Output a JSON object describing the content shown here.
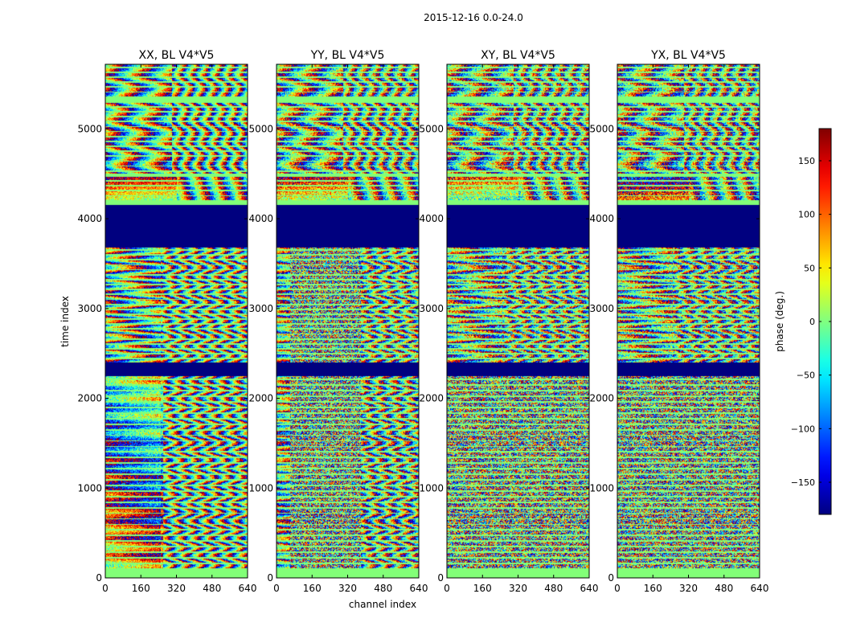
{
  "figure": {
    "suptitle": "2015-12-16 0.0-24.0"
  },
  "chart_data": {
    "type": "heatmap",
    "xlabel": "channel index",
    "ylabel": "time index",
    "xlim": [
      0,
      640
    ],
    "ylim": [
      0,
      5720
    ],
    "x_ticks": [
      0,
      160,
      320,
      480,
      640
    ],
    "y_ticks": [
      0,
      1000,
      2000,
      3000,
      4000,
      5000
    ],
    "panels": [
      {
        "title": "XX, BL V4*V5",
        "style": "xx"
      },
      {
        "title": "YY, BL V4*V5",
        "style": "yy"
      },
      {
        "title": "XY, BL V4*V5",
        "style": "xy"
      },
      {
        "title": "YX, BL V4*V5",
        "style": "yx"
      }
    ],
    "flagged_time_ranges": [
      [
        0,
        100
      ],
      [
        2250,
        2400
      ],
      [
        3680,
        4150
      ],
      [
        4150,
        4200
      ],
      [
        4480,
        4500
      ],
      [
        5290,
        5360
      ]
    ],
    "colorbar": {
      "label": "phase (deg.)",
      "range": [
        -180,
        180
      ],
      "ticks": [
        -150,
        -100,
        -50,
        0,
        50,
        100,
        150
      ],
      "tick_labels": [
        "−150",
        "−100",
        "−50",
        "0",
        "50",
        "100",
        "150"
      ],
      "colormap": "jet"
    }
  }
}
